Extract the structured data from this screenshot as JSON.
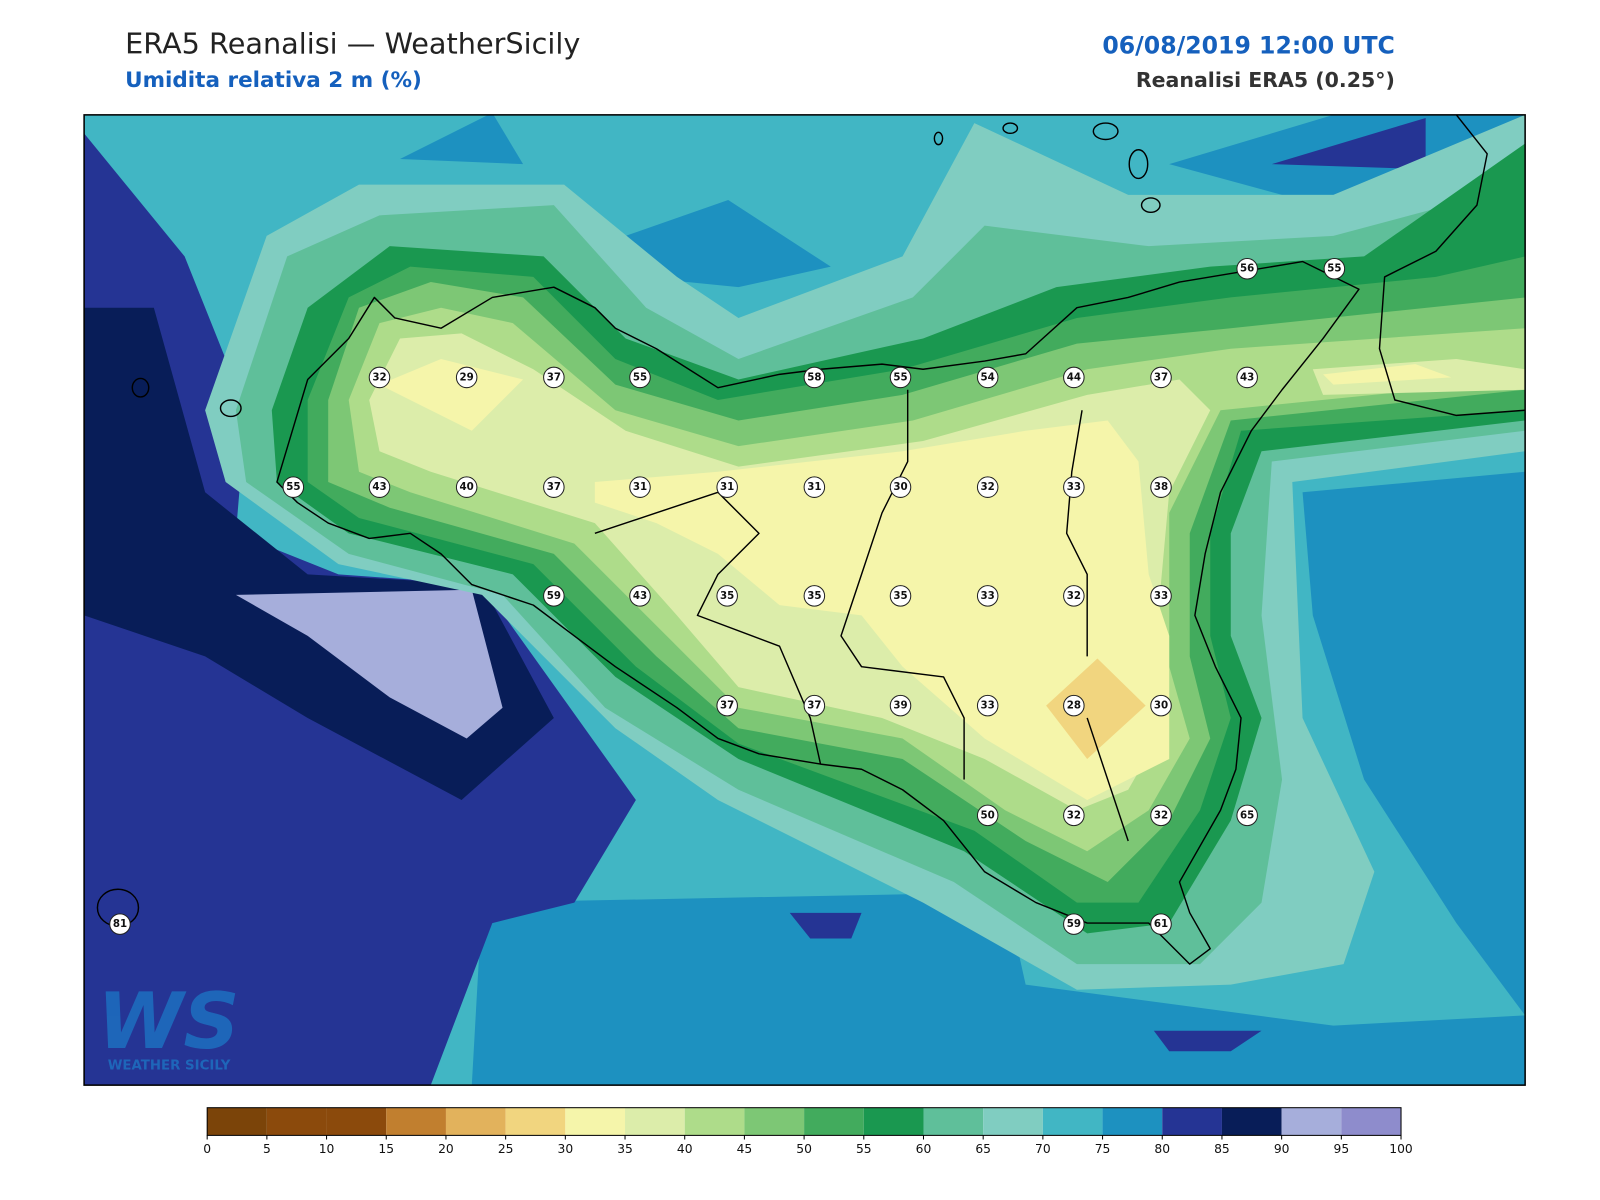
{
  "header": {
    "title": "ERA5 Reanalisi — WeatherSicily",
    "subtitle": "Umidita relativa 2 m (%)",
    "datetime": "06/08/2019 12:00 UTC",
    "source": "Reanalisi ERA5 (0.25°)"
  },
  "stations": [
    56,
    55,
    32,
    29,
    37,
    55,
    58,
    55,
    54,
    44,
    37,
    43,
    55,
    43,
    40,
    37,
    31,
    31,
    31,
    30,
    32,
    33,
    38,
    59,
    43,
    35,
    35,
    35,
    33,
    32,
    33,
    37,
    37,
    39,
    33,
    28,
    30,
    50,
    32,
    32,
    65,
    81,
    59,
    61
  ],
  "colorbar": {
    "levels": [
      0,
      5,
      10,
      15,
      20,
      25,
      30,
      35,
      40,
      45,
      50,
      55,
      60,
      65,
      70,
      75,
      80,
      85,
      90,
      95,
      100
    ],
    "colors": [
      "#7b4409",
      "#8b4a0c",
      "#8b4a0c",
      "#c17f2f",
      "#e2b25c",
      "#f1d57f",
      "#f5f5aa",
      "#dcedaa",
      "#aedc8a",
      "#7dc775",
      "#42ab5d",
      "#1a9850",
      "#5fbf9a",
      "#80cdc1",
      "#41b6c4",
      "#1d91c0",
      "#253494",
      "#081d58",
      "#a6aedb",
      "#8e8ccc"
    ]
  },
  "logo": {
    "mark": "WS",
    "text": "WEATHER SICILY"
  }
}
